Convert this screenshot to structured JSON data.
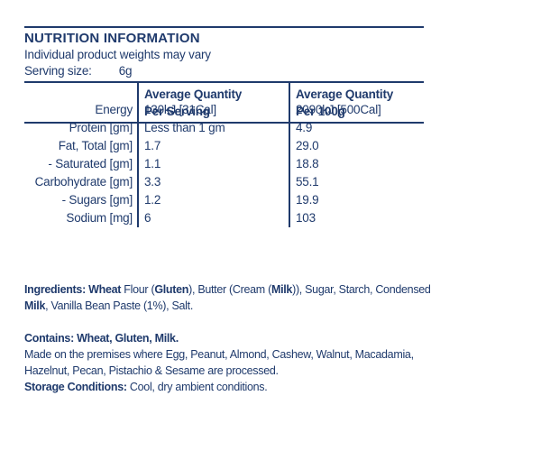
{
  "colors": {
    "ink": "#1f3a6c",
    "background": "#ffffff"
  },
  "header": {
    "title": "NUTRITION INFORMATION",
    "subtitle": "Individual product weights may vary",
    "serving_label": "Serving size:",
    "serving_value": "6g"
  },
  "table": {
    "col_headers": [
      {
        "line1": "Average Quantity",
        "line2": "Per Serving"
      },
      {
        "line1": "Average Quantity",
        "line2": "Per 100g"
      }
    ],
    "rows": [
      {
        "label": "Energy",
        "per_serving": "130kJ [31Cal]",
        "per_100g": "2090kJ [500Cal]"
      },
      {
        "label": "Protein [gm]",
        "per_serving": "Less than 1 gm",
        "per_100g": "4.9"
      },
      {
        "label": "Fat, Total [gm]",
        "per_serving": "1.7",
        "per_100g": "29.0"
      },
      {
        "label": "- Saturated [gm]",
        "per_serving": "1.1",
        "per_100g": "18.8"
      },
      {
        "label": "Carbohydrate [gm]",
        "per_serving": "3.3",
        "per_100g": "55.1"
      },
      {
        "label": "- Sugars [gm]",
        "per_serving": "1.2",
        "per_100g": "19.9"
      },
      {
        "label": "Sodium [mg]",
        "per_serving": "6",
        "per_100g": "103"
      }
    ]
  },
  "ingredients": {
    "segments": [
      {
        "text": "Ingredients: ",
        "bold": true
      },
      {
        "text": "Wheat",
        "bold": true
      },
      {
        "text": " Flour (",
        "bold": false
      },
      {
        "text": "Gluten",
        "bold": true
      },
      {
        "text": "), Butter (Cream (",
        "bold": false
      },
      {
        "text": "Milk",
        "bold": true
      },
      {
        "text": ")), Sugar, Starch, Condensed ",
        "bold": false
      },
      {
        "text": "Milk",
        "bold": true
      },
      {
        "text": ", Vanilla Bean Paste (1%), Salt.",
        "bold": false
      }
    ]
  },
  "footer": {
    "contains": "Contains: Wheat, Gluten, Milk.",
    "made_on": "Made on the premises where Egg, Peanut, Almond, Cashew, Walnut, Macadamia, Hazelnut, Pecan, Pistachio & Sesame are processed.",
    "storage_label": "Storage Conditions:",
    "storage_value": " Cool, dry ambient conditions."
  }
}
